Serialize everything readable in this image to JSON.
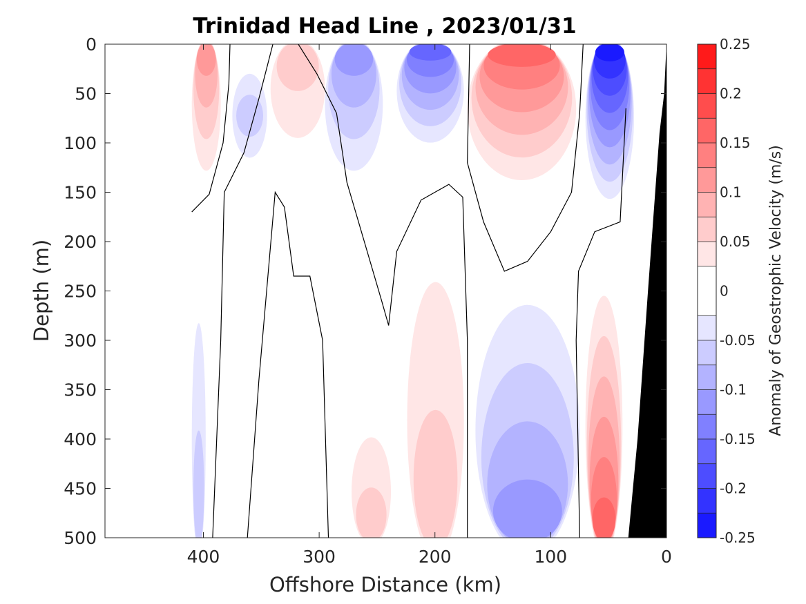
{
  "chart_data": {
    "type": "heatmap",
    "title": "Trinidad Head Line , 2023/01/31",
    "xlabel": "Offshore Distance (km)",
    "ylabel": "Depth (m)",
    "xlim": [
      485,
      0
    ],
    "ylim": [
      0,
      500
    ],
    "x_reversed": true,
    "y_reversed": true,
    "xticks": [
      400,
      300,
      200,
      100,
      0
    ],
    "yticks": [
      0,
      50,
      100,
      150,
      200,
      250,
      300,
      350,
      400,
      450,
      500
    ],
    "colorbar": {
      "label": "Anomaly of Geostrophic Velocity (m/s)",
      "ticks": [
        0.25,
        0.2,
        0.15,
        0.1,
        0.05,
        0,
        -0.05,
        -0.1,
        -0.15,
        -0.2,
        -0.25
      ],
      "levels": [
        -0.25,
        -0.225,
        -0.2,
        -0.175,
        -0.15,
        -0.125,
        -0.1,
        -0.075,
        -0.05,
        -0.025,
        0.025,
        0.05,
        0.075,
        0.1,
        0.125,
        0.15,
        0.175,
        0.2,
        0.225,
        0.25
      ],
      "colors": [
        "#0000ff",
        "#1a1aff",
        "#3333ff",
        "#4d4dff",
        "#6666ff",
        "#8080ff",
        "#9999ff",
        "#b3b3ff",
        "#ccccff",
        "#e6e6ff",
        "#ffffff",
        "#ffe6e6",
        "#ffcccc",
        "#ffb3b3",
        "#ff9999",
        "#ff8080",
        "#ff6666",
        "#ff4d4d",
        "#ff3333",
        "#ff1a1a",
        "#ff0000"
      ]
    },
    "zero_contour_lines": [
      [
        [
          410,
          170
        ],
        [
          395,
          152
        ],
        [
          383,
          100
        ],
        [
          378,
          40
        ],
        [
          377,
          0
        ]
      ],
      [
        [
          392,
          500
        ],
        [
          385,
          300
        ],
        [
          382,
          150
        ],
        [
          365,
          110
        ],
        [
          352,
          55
        ],
        [
          340,
          0
        ]
      ],
      [
        [
          362,
          500
        ],
        [
          352,
          340
        ],
        [
          338,
          150
        ],
        [
          330,
          165
        ],
        [
          322,
          235
        ],
        [
          308,
          235
        ],
        [
          297,
          300
        ],
        [
          292,
          500
        ]
      ],
      [
        [
          318,
          0
        ],
        [
          302,
          30
        ],
        [
          285,
          70
        ],
        [
          276,
          140
        ],
        [
          266,
          180
        ],
        [
          246,
          260
        ],
        [
          240,
          285
        ],
        [
          233,
          210
        ],
        [
          212,
          158
        ],
        [
          188,
          142
        ],
        [
          176,
          155
        ],
        [
          172,
          300
        ],
        [
          172,
          500
        ]
      ],
      [
        [
          170,
          0
        ],
        [
          172,
          120
        ],
        [
          158,
          180
        ],
        [
          140,
          230
        ],
        [
          120,
          220
        ],
        [
          100,
          190
        ],
        [
          82,
          150
        ],
        [
          75,
          70
        ],
        [
          72,
          0
        ]
      ],
      [
        [
          75,
          500
        ],
        [
          78,
          300
        ],
        [
          76,
          230
        ],
        [
          62,
          190
        ],
        [
          40,
          180
        ],
        [
          35,
          65
        ]
      ]
    ],
    "anomaly_regions": [
      {
        "sign": "positive",
        "x_range_km": [
          410,
          385
        ],
        "depth_range_m": [
          0,
          135
        ],
        "peak": 0.1
      },
      {
        "sign": "negative",
        "x_range_km": [
          375,
          345
        ],
        "depth_range_m": [
          30,
          115
        ],
        "peak": -0.05
      },
      {
        "sign": "positive",
        "x_range_km": [
          342,
          295
        ],
        "depth_range_m": [
          0,
          100
        ],
        "peak": 0.05
      },
      {
        "sign": "negative",
        "x_range_km": [
          295,
          245
        ],
        "depth_range_m": [
          0,
          135
        ],
        "peak": -0.1
      },
      {
        "sign": "negative",
        "x_range_km": [
          233,
          175
        ],
        "depth_range_m": [
          0,
          105
        ],
        "peak": -0.15
      },
      {
        "sign": "positive",
        "x_range_km": [
          172,
          78
        ],
        "depth_range_m": [
          0,
          145
        ],
        "peak": 0.15
      },
      {
        "sign": "negative",
        "x_range_km": [
          70,
          28
        ],
        "depth_range_m": [
          0,
          165
        ],
        "peak": -0.225
      },
      {
        "sign": "negative",
        "x_range_km": [
          410,
          398
        ],
        "depth_range_m": [
          265,
          500
        ],
        "peak": -0.05
      },
      {
        "sign": "positive",
        "x_range_km": [
          272,
          238
        ],
        "depth_range_m": [
          390,
          500
        ],
        "peak": 0.05
      },
      {
        "sign": "positive",
        "x_range_km": [
          224,
          175
        ],
        "depth_range_m": [
          220,
          500
        ],
        "peak": 0.05
      },
      {
        "sign": "negative",
        "x_range_km": [
          165,
          75
        ],
        "depth_range_m": [
          245,
          500
        ],
        "peak": -0.1
      },
      {
        "sign": "positive",
        "x_range_km": [
          70,
          38
        ],
        "depth_range_m": [
          235,
          500
        ],
        "peak": 0.15
      }
    ],
    "land": {
      "shelf_edge": [
        [
          0,
          0
        ],
        [
          2,
          50
        ],
        [
          6,
          90
        ],
        [
          16,
          250
        ],
        [
          25,
          400
        ],
        [
          33,
          500
        ]
      ]
    }
  }
}
